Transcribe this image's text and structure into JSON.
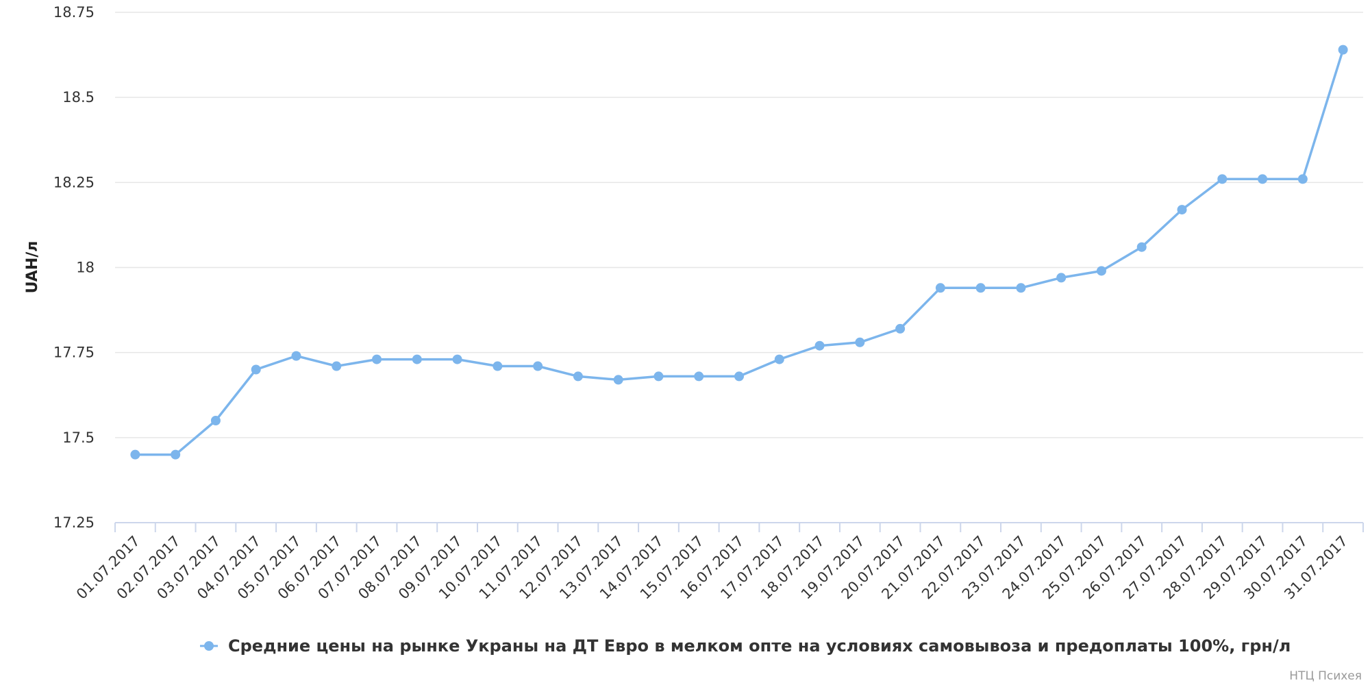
{
  "credit": "НТЦ Психея",
  "chart_data": {
    "type": "line",
    "title": "",
    "xlabel": "",
    "ylabel": "UAH/л",
    "ylim": [
      17.25,
      18.75
    ],
    "yticks": [
      "17.25",
      "17.5",
      "17.75",
      "18",
      "18.25",
      "18.5",
      "18.75"
    ],
    "grid": true,
    "legend_position": "bottom-center",
    "categories": [
      "01.07.2017",
      "02.07.2017",
      "03.07.2017",
      "04.07.2017",
      "05.07.2017",
      "06.07.2017",
      "07.07.2017",
      "08.07.2017",
      "09.07.2017",
      "10.07.2017",
      "11.07.2017",
      "12.07.2017",
      "13.07.2017",
      "14.07.2017",
      "15.07.2017",
      "16.07.2017",
      "17.07.2017",
      "18.07.2017",
      "19.07.2017",
      "20.07.2017",
      "21.07.2017",
      "22.07.2017",
      "23.07.2017",
      "24.07.2017",
      "25.07.2017",
      "26.07.2017",
      "27.07.2017",
      "28.07.2017",
      "29.07.2017",
      "30.07.2017",
      "31.07.2017"
    ],
    "series": [
      {
        "name": "Средние цены на рынке Украны на ДТ Евро в мелком опте на условиях самовывоза и предоплаты 100%, грн/л",
        "color": "#7cb5ec",
        "values": [
          17.45,
          17.45,
          17.55,
          17.7,
          17.74,
          17.71,
          17.73,
          17.73,
          17.73,
          17.71,
          17.71,
          17.68,
          17.67,
          17.68,
          17.68,
          17.68,
          17.73,
          17.77,
          17.78,
          17.82,
          17.94,
          17.94,
          17.94,
          17.97,
          17.99,
          18.06,
          18.17,
          18.26,
          18.26,
          18.26,
          18.64
        ]
      }
    ]
  }
}
